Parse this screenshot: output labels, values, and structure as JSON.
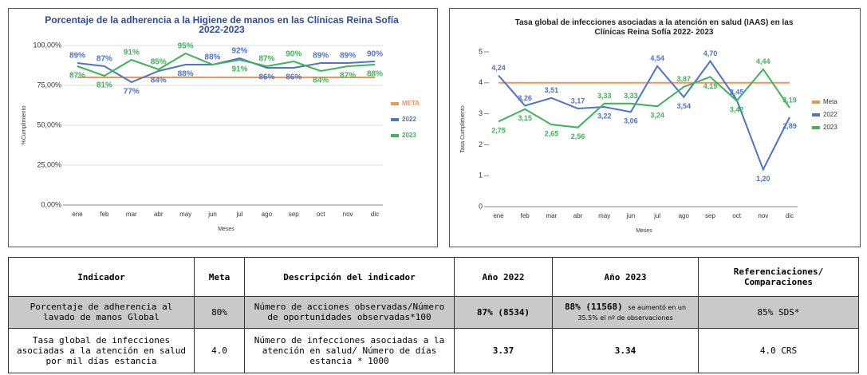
{
  "chart_data": [
    {
      "type": "line",
      "title": "Porcentaje de la adherencia a la Higiene de manos en las Clínicas Reina Sofía 2022-2023",
      "y_label": "%Cumplimiento",
      "x_label": "Meses",
      "categories": [
        "ene",
        "feb",
        "mar",
        "abr",
        "may",
        "jun",
        "jul",
        "ago",
        "sep",
        "oct",
        "nov",
        "dic"
      ],
      "ylim": [
        0,
        100
      ],
      "yticks": [
        {
          "value": 0,
          "label": "0,00%"
        },
        {
          "value": 25,
          "label": "25,00%"
        },
        {
          "value": 50,
          "label": "50,00%"
        },
        {
          "value": 75,
          "label": "75,00%"
        },
        {
          "value": 100,
          "label": "100,00%"
        }
      ],
      "grid": true,
      "series": [
        {
          "name": "META",
          "color": "#f0955a",
          "values": [
            80,
            80,
            80,
            80,
            80,
            80,
            80,
            80,
            80,
            80,
            80,
            80
          ]
        },
        {
          "name": "2022",
          "color": "#4e73c9",
          "values": [
            89,
            87,
            77,
            84,
            88,
            88,
            92,
            86,
            86,
            89,
            89,
            90
          ],
          "value_labels": [
            "89%",
            "87%",
            "77%",
            "84%",
            "88%",
            "88%",
            "92%",
            "86%",
            "86%",
            "89%",
            "89%",
            "90%"
          ]
        },
        {
          "name": "2023",
          "color": "#3cb556",
          "values": [
            87,
            81,
            91,
            85,
            95,
            88,
            91,
            87,
            90,
            84,
            87,
            88
          ],
          "value_labels": [
            "87%",
            "81%",
            "91%",
            "85%",
            "95%",
            null,
            "91%",
            "87%",
            "90%",
            "84%",
            "87%",
            "88%"
          ]
        }
      ]
    },
    {
      "type": "line",
      "title": "Tasa global de infecciones asociadas a la atención en salud (IAAS) en las Clínicas Reina Sofía 2022- 2023",
      "y_label": "Tasa Cumplimiento",
      "x_label": "Meses",
      "categories": [
        "ene",
        "feb",
        "mar",
        "abr",
        "may",
        "jun",
        "jul",
        "ago",
        "sep",
        "oct",
        "nov",
        "dic"
      ],
      "ylim": [
        0,
        5
      ],
      "yticks": [
        0,
        1,
        2,
        3,
        4,
        5
      ],
      "grid": false,
      "series": [
        {
          "name": "Meta",
          "color": "#f0955a",
          "values": [
            4,
            4,
            4,
            4,
            4,
            4,
            4,
            4,
            4,
            4,
            4,
            4
          ]
        },
        {
          "name": "2022",
          "color": "#4e73c9",
          "values": [
            4.24,
            3.26,
            3.51,
            3.17,
            3.22,
            3.06,
            4.54,
            3.54,
            4.7,
            3.45,
            1.2,
            2.89
          ],
          "value_labels": [
            "4,24",
            "3,26",
            "3,51",
            "3,17",
            "3,22",
            "3,06",
            "4,54",
            "3,54",
            "4,70",
            "3,45",
            "1,20",
            "2,89"
          ]
        },
        {
          "name": "2023",
          "color": "#3cb556",
          "values": [
            2.75,
            3.15,
            2.65,
            2.56,
            3.33,
            3.33,
            3.24,
            3.87,
            4.19,
            3.42,
            4.44,
            3.19
          ],
          "value_labels": [
            "2,75",
            "3,15",
            "2,65",
            "2,56",
            "3,33",
            "3,33",
            "3,24",
            "3,87",
            "4,19",
            "3,42",
            "4,44",
            "3,19"
          ]
        }
      ]
    }
  ],
  "table": {
    "header": [
      "Indicador",
      "Meta",
      "Descripción del indicador",
      "Año 2022",
      "Año 2023",
      "Referenciaciones/ Comparaciones"
    ],
    "rows": [
      [
        "Porcentaje de adherencia al lavado de manos Global",
        "80%",
        "Número de acciones observadas/Número de oportunidades observadas*100",
        "87% (8534)",
        {
          "text": "88% (11568)",
          "note": "se aumentó en un 35.5% el nº de observaciones"
        },
        "85% SDS*"
      ],
      [
        "Tasa global de infecciones asociadas a la atención en salud por mil días estancia",
        "4.0",
        "Número de infecciones asociadas a la atención en salud/ Número de días estancia * 1000",
        "3.37",
        "3.34",
        "4.0 CRS"
      ]
    ]
  }
}
